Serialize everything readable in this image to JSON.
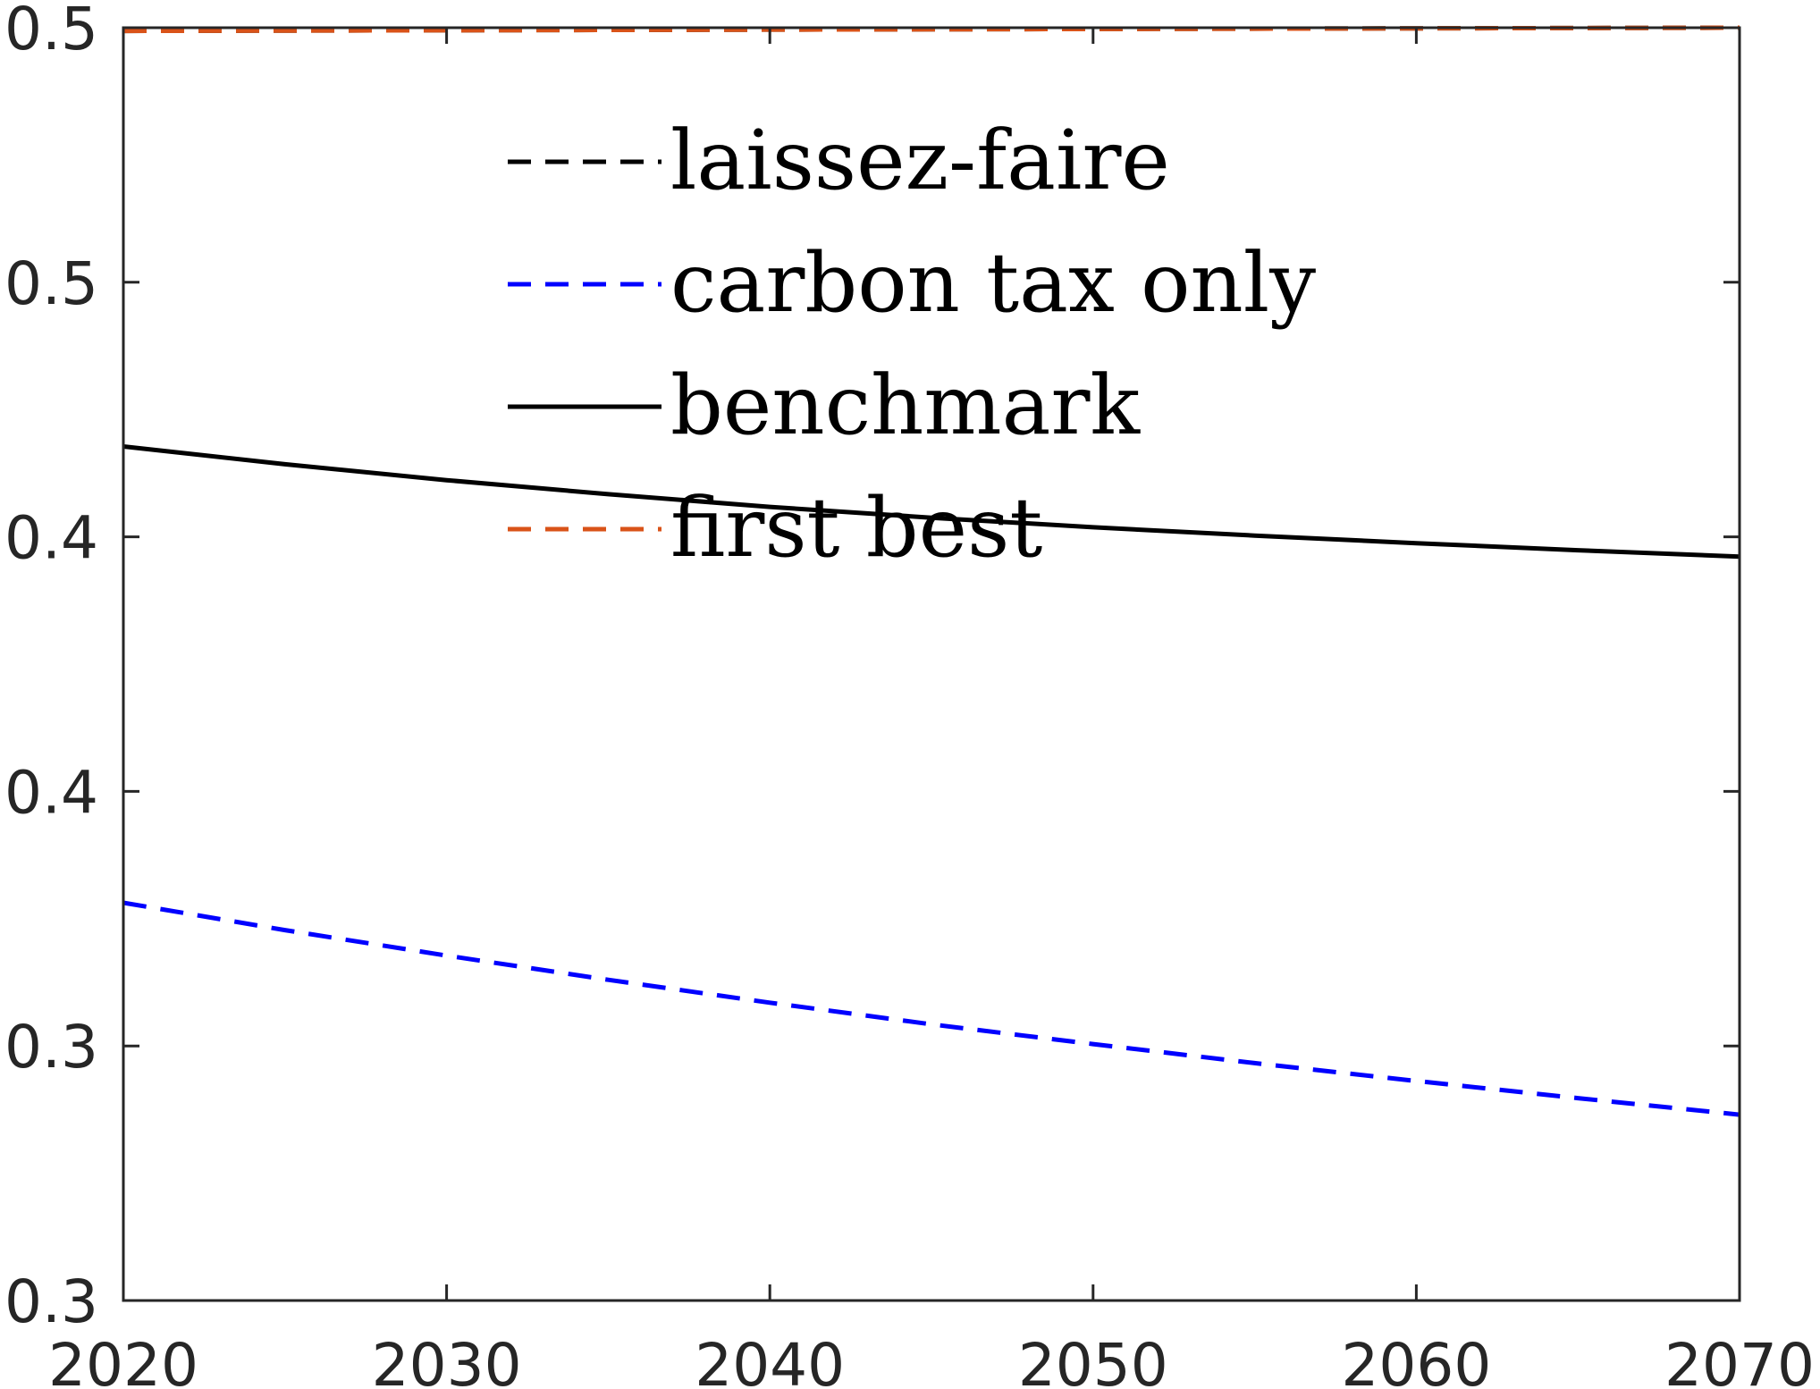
{
  "chart_data": {
    "type": "line",
    "title": "",
    "xlabel": "",
    "ylabel": "",
    "xlim": [
      2020,
      2070
    ],
    "ylim": [
      0.3,
      0.5
    ],
    "x_ticks": [
      2020,
      2030,
      2040,
      2050,
      2060,
      2070
    ],
    "x_tick_labels": [
      "2020",
      "2030",
      "2040",
      "2050",
      "2060",
      "2070"
    ],
    "y_ticks": [
      0.3,
      0.34,
      0.38,
      0.42,
      0.46,
      0.5
    ],
    "y_tick_labels": [
      "0.3",
      "0.3",
      "0.4",
      "0.4",
      "0.5",
      "0.5"
    ],
    "grid": false,
    "legend": {
      "placement": "upper-center",
      "entries": [
        "laissez-faire",
        "carbon tax only",
        "benchmark",
        "first best"
      ]
    },
    "series": [
      {
        "name": "laissez-faire",
        "color": "#000000",
        "dash": "dashed",
        "x": [
          2020,
          2070
        ],
        "y": [
          0.4995,
          0.5
        ]
      },
      {
        "name": "carbon tax only",
        "color": "#0000ff",
        "dash": "dashed",
        "x": [
          2020,
          2025,
          2030,
          2035,
          2040,
          2045,
          2050,
          2055,
          2060,
          2065,
          2070
        ],
        "y": [
          0.3625,
          0.3582,
          0.3542,
          0.3504,
          0.3468,
          0.3434,
          0.3403,
          0.3373,
          0.3345,
          0.3318,
          0.3292
        ]
      },
      {
        "name": "benchmark",
        "color": "#000000",
        "dash": "solid",
        "x": [
          2020,
          2025,
          2030,
          2035,
          2040,
          2045,
          2050,
          2055,
          2060,
          2065,
          2070
        ],
        "y": [
          0.4342,
          0.4314,
          0.4289,
          0.4267,
          0.4247,
          0.423,
          0.4215,
          0.4202,
          0.419,
          0.4179,
          0.4169
        ]
      },
      {
        "name": "first best",
        "color": "#d95319",
        "dash": "dashed",
        "x": [
          2020,
          2070
        ],
        "y": [
          0.4995,
          0.5
        ]
      }
    ]
  }
}
